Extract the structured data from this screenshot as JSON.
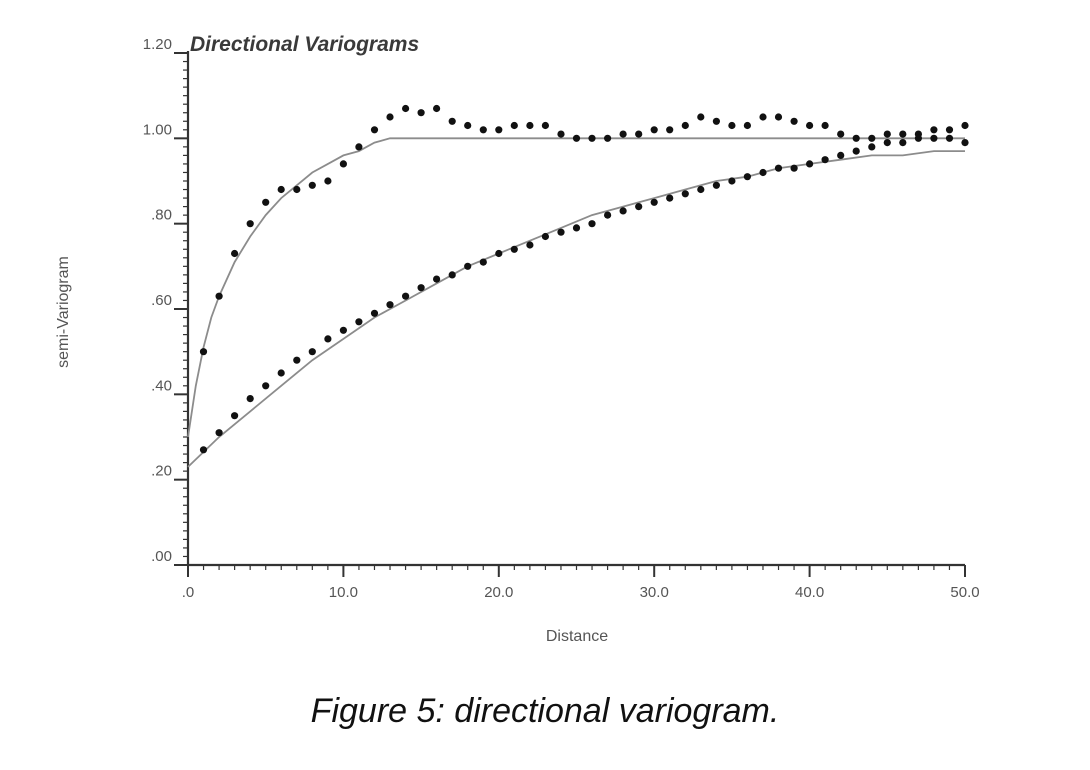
{
  "caption": "Figure 5: directional variogram.",
  "chart_data": {
    "type": "scatter",
    "title": "Directional Variograms",
    "xlabel": "Distance",
    "ylabel": "semi-Variogram",
    "xlim": [
      0,
      50
    ],
    "ylim": [
      0,
      1.2
    ],
    "x_ticks": [
      {
        "value": 0,
        "label": ".0"
      },
      {
        "value": 10,
        "label": "10.0"
      },
      {
        "value": 20,
        "label": "20.0"
      },
      {
        "value": 30,
        "label": "30.0"
      },
      {
        "value": 40,
        "label": "40.0"
      },
      {
        "value": 50,
        "label": "50.0"
      }
    ],
    "y_ticks": [
      {
        "value": 0,
        "label": ".00"
      },
      {
        "value": 0.2,
        "label": ".20"
      },
      {
        "value": 0.4,
        "label": ".40"
      },
      {
        "value": 0.6,
        "label": ".60"
      },
      {
        "value": 0.8,
        "label": ".80"
      },
      {
        "value": 1.0,
        "label": "1.00"
      },
      {
        "value": 1.2,
        "label": "1.20"
      }
    ],
    "grid": false,
    "colors": {
      "points": "#111111",
      "model_lines": "#8c8c8c",
      "axis": "#333333"
    },
    "series": [
      {
        "kind": "points",
        "x": [
          1,
          2,
          3,
          4,
          5,
          6,
          7,
          8,
          9,
          10,
          11,
          12,
          13,
          14,
          15,
          16,
          17,
          18,
          19,
          20,
          21,
          22,
          23,
          24,
          25,
          26,
          27,
          28,
          29,
          30,
          31,
          32,
          33,
          34,
          35,
          36,
          37,
          38,
          39,
          40,
          41,
          42,
          43,
          44,
          45,
          46,
          47,
          48,
          49,
          50
        ],
        "y": [
          0.5,
          0.63,
          0.73,
          0.8,
          0.85,
          0.88,
          0.88,
          0.89,
          0.9,
          0.94,
          0.98,
          1.02,
          1.05,
          1.07,
          1.06,
          1.07,
          1.04,
          1.03,
          1.02,
          1.02,
          1.03,
          1.03,
          1.03,
          1.01,
          1.0,
          1.0,
          1.0,
          1.01,
          1.01,
          1.02,
          1.02,
          1.03,
          1.05,
          1.04,
          1.03,
          1.03,
          1.05,
          1.05,
          1.04,
          1.03,
          1.03,
          1.01,
          1.0,
          1.0,
          1.01,
          1.01,
          1.01,
          1.02,
          1.02,
          1.03
        ]
      },
      {
        "kind": "points",
        "x": [
          1,
          2,
          3,
          4,
          5,
          6,
          7,
          8,
          9,
          10,
          11,
          12,
          13,
          14,
          15,
          16,
          17,
          18,
          19,
          20,
          21,
          22,
          23,
          24,
          25,
          26,
          27,
          28,
          29,
          30,
          31,
          32,
          33,
          34,
          35,
          36,
          37,
          38,
          39,
          40,
          41,
          42,
          43,
          44,
          45,
          46,
          47,
          48,
          49,
          50
        ],
        "y": [
          0.27,
          0.31,
          0.35,
          0.39,
          0.42,
          0.45,
          0.48,
          0.5,
          0.53,
          0.55,
          0.57,
          0.59,
          0.61,
          0.63,
          0.65,
          0.67,
          0.68,
          0.7,
          0.71,
          0.73,
          0.74,
          0.75,
          0.77,
          0.78,
          0.79,
          0.8,
          0.82,
          0.83,
          0.84,
          0.85,
          0.86,
          0.87,
          0.88,
          0.89,
          0.9,
          0.91,
          0.92,
          0.93,
          0.93,
          0.94,
          0.95,
          0.96,
          0.97,
          0.98,
          0.99,
          0.99,
          1.0,
          1.0,
          1.0,
          0.99
        ]
      },
      {
        "kind": "model",
        "x": [
          0,
          0.5,
          1,
          1.5,
          2,
          3,
          4,
          5,
          6,
          7,
          8,
          9,
          10,
          11,
          12,
          13,
          14,
          15,
          20,
          30,
          40,
          50
        ],
        "y": [
          0.3,
          0.42,
          0.51,
          0.58,
          0.63,
          0.71,
          0.77,
          0.82,
          0.86,
          0.89,
          0.92,
          0.94,
          0.96,
          0.97,
          0.99,
          1.0,
          1.0,
          1.0,
          1.0,
          1.0,
          1.0,
          1.0
        ]
      },
      {
        "kind": "model",
        "x": [
          0,
          2,
          4,
          6,
          8,
          10,
          12,
          14,
          16,
          18,
          20,
          22,
          24,
          26,
          28,
          30,
          32,
          34,
          36,
          38,
          40,
          42,
          44,
          46,
          48,
          50
        ],
        "y": [
          0.23,
          0.3,
          0.36,
          0.42,
          0.48,
          0.53,
          0.58,
          0.62,
          0.66,
          0.7,
          0.73,
          0.76,
          0.79,
          0.82,
          0.84,
          0.86,
          0.88,
          0.9,
          0.91,
          0.93,
          0.94,
          0.95,
          0.96,
          0.96,
          0.97,
          0.97
        ]
      }
    ]
  }
}
